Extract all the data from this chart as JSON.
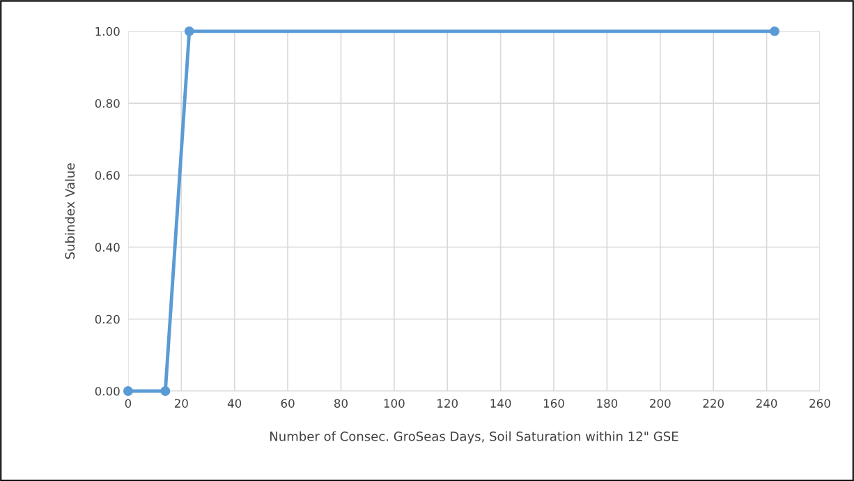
{
  "chart_data": {
    "type": "line",
    "xlabel": "Number of Consec. GroSeas Days, Soil Saturation within 12\" GSE",
    "ylabel": "Subindex Value",
    "series": [
      {
        "color": "#5b9bd5",
        "x": [
          0,
          14,
          23,
          243
        ],
        "values": [
          0,
          0,
          1,
          1
        ]
      }
    ],
    "xlim": [
      0,
      260
    ],
    "xticks": [
      0,
      20,
      40,
      60,
      80,
      100,
      120,
      140,
      160,
      180,
      200,
      220,
      240,
      260
    ],
    "ylim": [
      0,
      1
    ],
    "yticks": [
      {
        "value": 0,
        "label": "0.00"
      },
      {
        "value": 0.2,
        "label": "0.20"
      },
      {
        "value": 0.4,
        "label": "0.40"
      },
      {
        "value": 0.6,
        "label": "0.60"
      },
      {
        "value": 0.8,
        "label": "0.80"
      },
      {
        "value": 1,
        "label": "1.00"
      }
    ],
    "grid": true,
    "marker": "circle",
    "line_style": "solid",
    "legend": false
  }
}
